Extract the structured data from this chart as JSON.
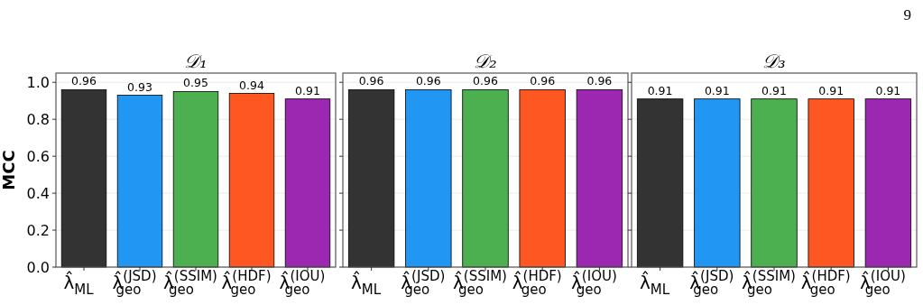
{
  "chart_data": [
    {
      "type": "bar",
      "title": "𝒟₁",
      "ylabel": "MCC",
      "categories": [
        "λ̂$_{ML}$",
        "λ̂$^{(JSD)}$$_{geo}$",
        "λ̂$^{(SSIM)}$$_{geo}$",
        "λ̂$^{(HDF)}$$_{geo}$",
        "λ̂$^{(IOU)}$$_{geo}$"
      ],
      "values": [
        0.96,
        0.93,
        0.95,
        0.94,
        0.91
      ],
      "colors": [
        "#333333",
        "#2196f3",
        "#4caf50",
        "#ff5722",
        "#9c27b0"
      ],
      "ylim": [
        0,
        1.05
      ],
      "yticks": [
        {
          "value": 0,
          "label": "0.0"
        },
        {
          "value": 0.2,
          "label": "0.2"
        },
        {
          "value": 0.4,
          "label": "0.4"
        },
        {
          "value": 0.6,
          "label": "0.6"
        },
        {
          "value": 0.8,
          "label": "0.8"
        },
        {
          "value": 1,
          "label": "1.0"
        }
      ],
      "grid": "y",
      "data_labels": true
    },
    {
      "type": "bar",
      "title": "𝒟₂",
      "categories": [
        "λ̂$_{ML}$",
        "λ̂$^{(JSD)}$$_{geo}$",
        "λ̂$^{(SSIM)}$$_{geo}$",
        "λ̂$^{(HDF)}$$_{geo}$",
        "λ̂$^{(IOU)}$$_{geo}$"
      ],
      "values": [
        0.96,
        0.96,
        0.96,
        0.96,
        0.96
      ],
      "colors": [
        "#333333",
        "#2196f3",
        "#4caf50",
        "#ff5722",
        "#9c27b0"
      ],
      "ylim": [
        0,
        1.05
      ],
      "yticks": [
        0,
        0.2,
        0.4,
        0.6,
        0.8,
        1
      ],
      "grid": "y",
      "data_labels": true,
      "tick_labels": "x"
    },
    {
      "type": "bar",
      "title": "𝒟₃",
      "categories": [
        "λ̂$_{ML}$",
        "λ̂$^{(JSD)}$$_{geo}$",
        "λ̂$^{(SSIM)}$$_{geo}$",
        "λ̂$^{(HDF)}$$_{geo}$",
        "λ̂$^{(IOU)}$$_{geo}$"
      ],
      "values": [
        0.91,
        0.91,
        0.91,
        0.91,
        0.91
      ],
      "colors": [
        "#333333",
        "#2196f3",
        "#4caf50",
        "#ff5722",
        "#9c27b0"
      ],
      "ylim": [
        0,
        1.05
      ],
      "yticks": [
        0,
        0.2,
        0.4,
        0.6,
        0.8,
        1
      ],
      "grid": "y",
      "data_labels": true,
      "tick_labels": "x",
      "annotations": [
        "9"
      ]
    }
  ]
}
